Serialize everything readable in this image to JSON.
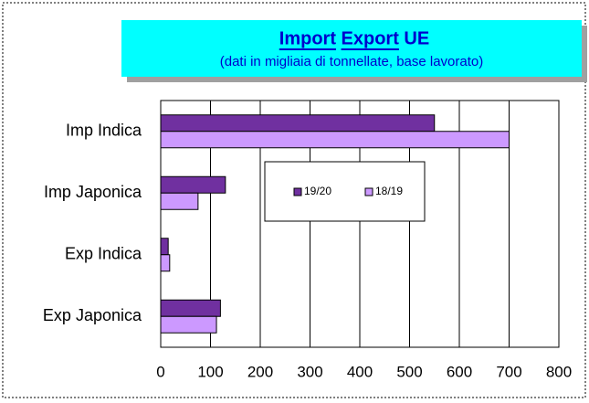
{
  "chart_data": {
    "type": "bar",
    "orientation": "horizontal",
    "title": "Import Export UE",
    "subtitle": "(dati in migliaia di tonnellate, base lavorato)",
    "categories": [
      "Imp Indica",
      "Imp Japonica",
      "Exp Indica",
      "Exp Japonica"
    ],
    "series": [
      {
        "name": "19/20",
        "color": "#7030a0",
        "values": [
          550,
          130,
          15,
          120
        ]
      },
      {
        "name": "18/19",
        "color": "#cc99ff",
        "values": [
          700,
          75,
          18,
          112
        ]
      }
    ],
    "xlim": [
      0,
      800
    ],
    "xticks": [
      0,
      100,
      200,
      300,
      400,
      500,
      600,
      700,
      800
    ],
    "grid": true,
    "legend": "center"
  }
}
